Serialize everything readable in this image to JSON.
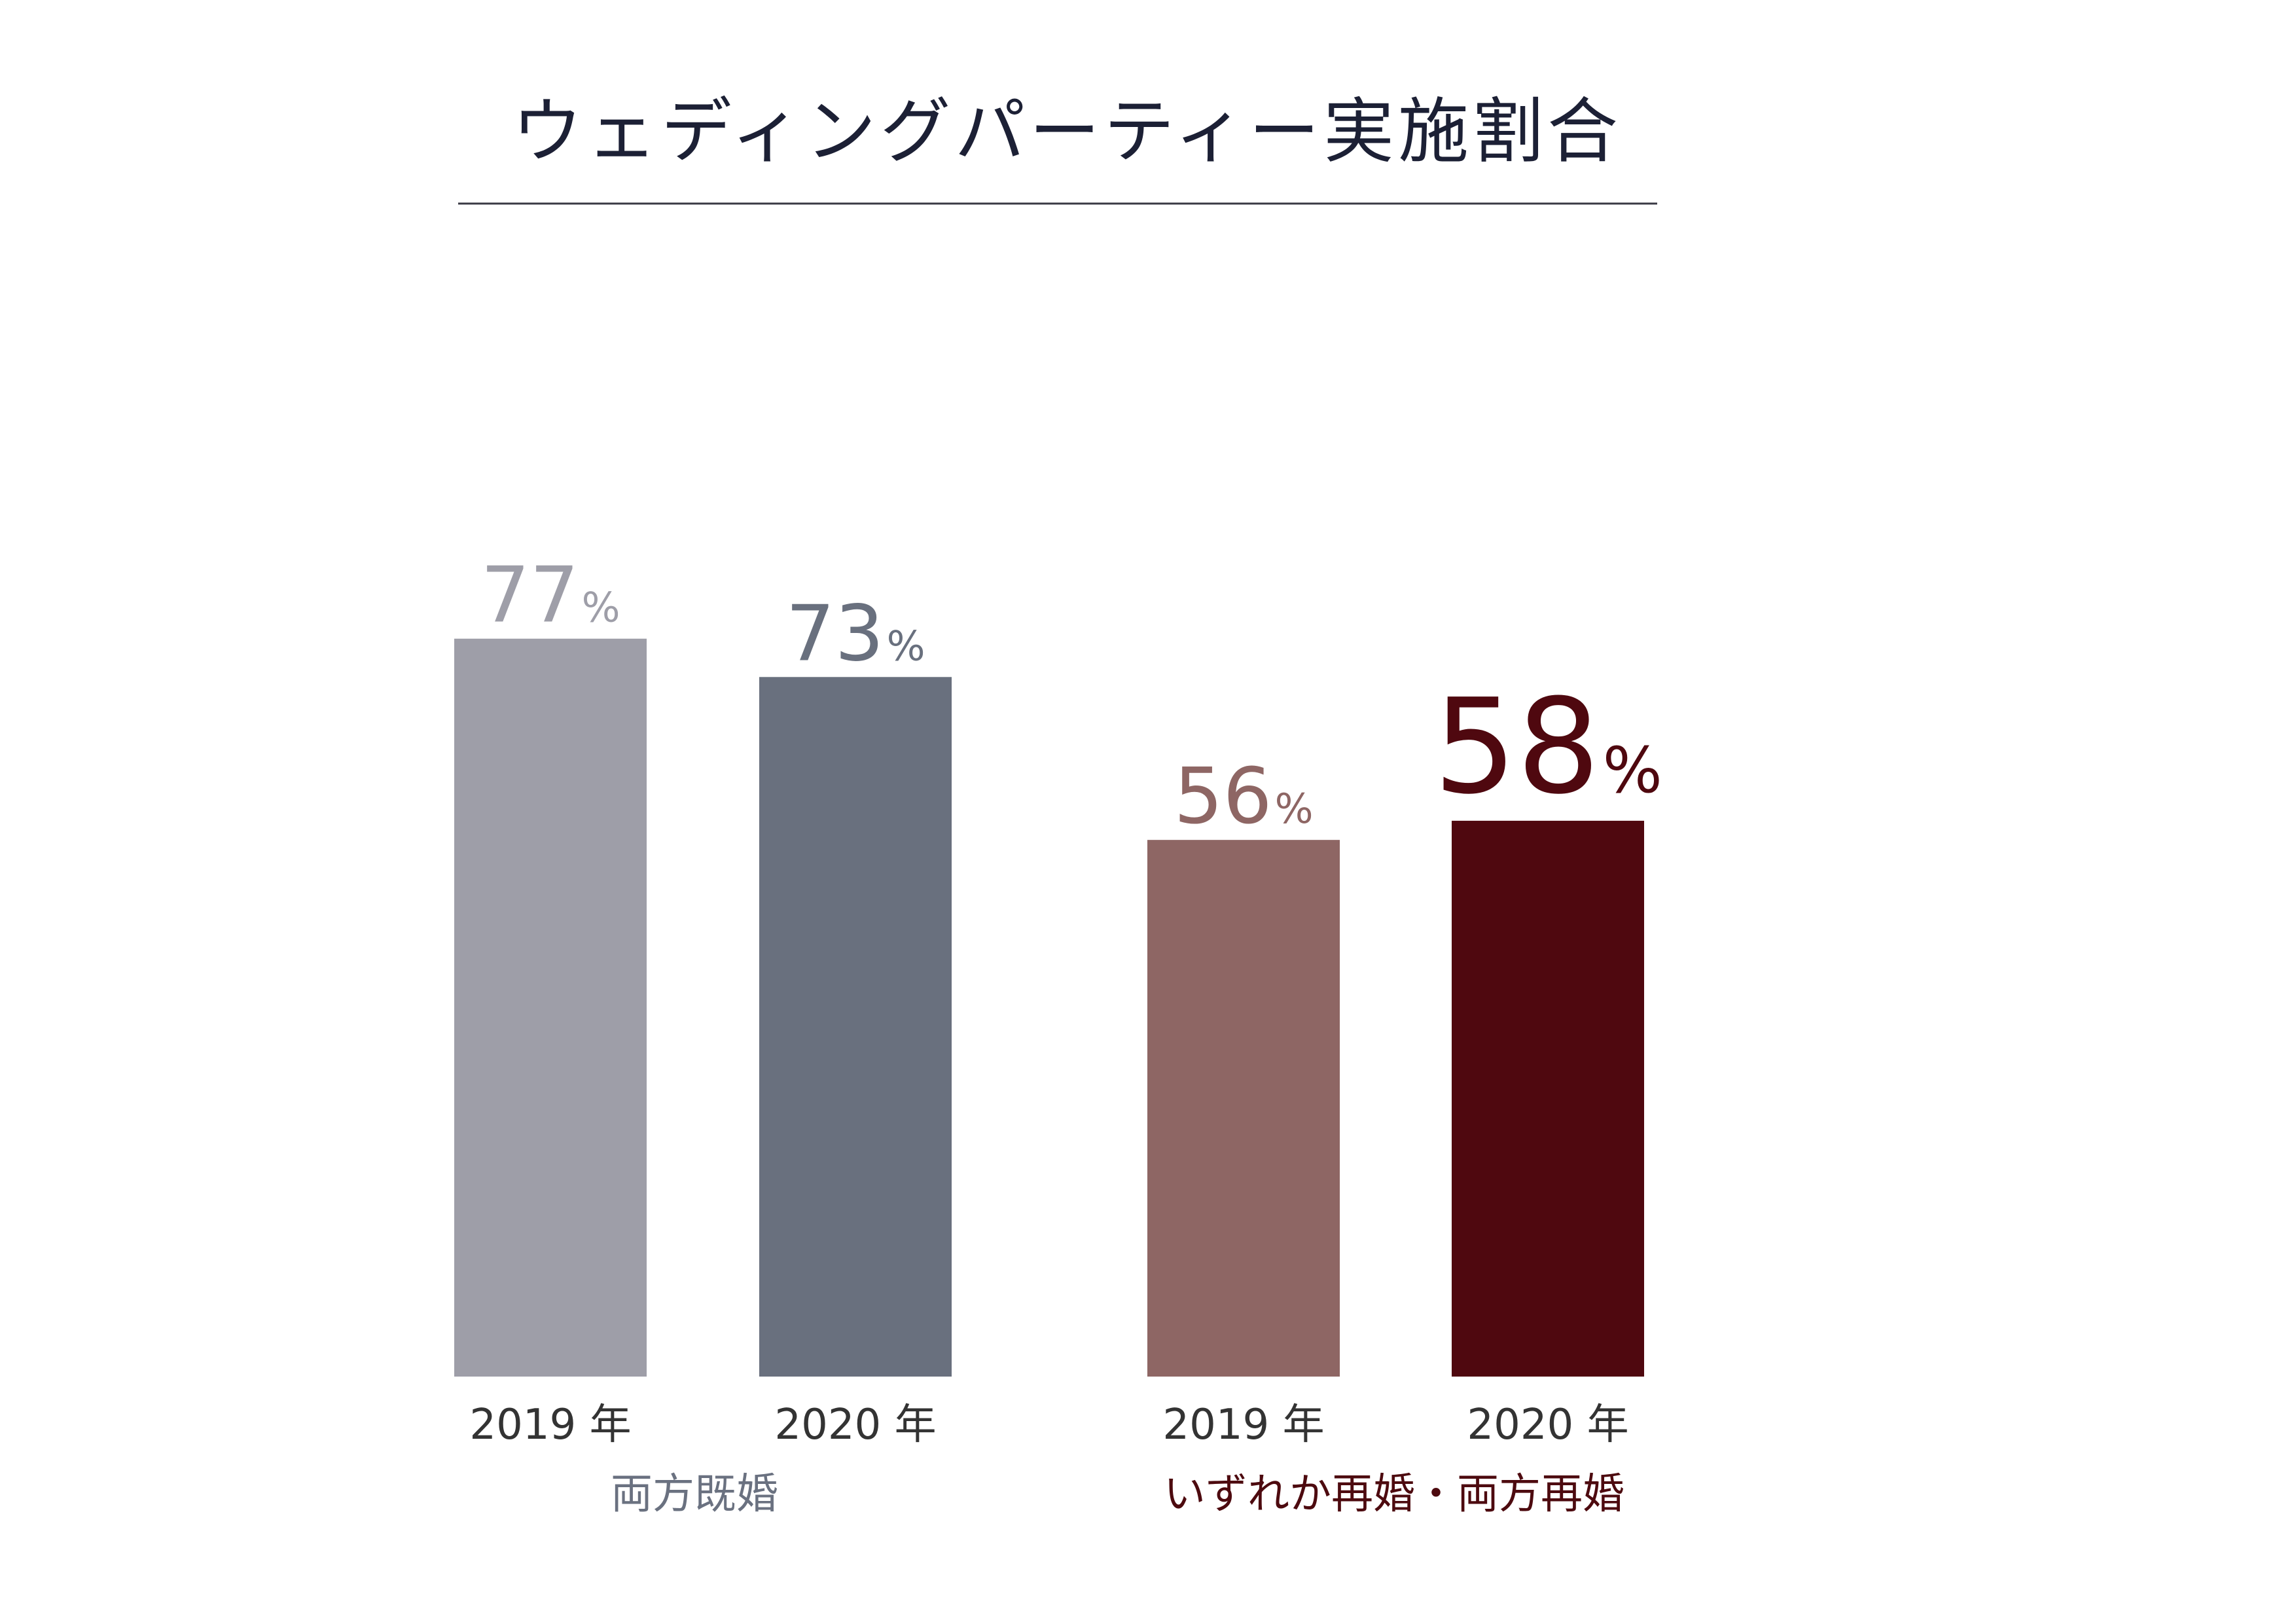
{
  "title": "ウェディングパーティー実施割合",
  "chart_data": {
    "type": "bar",
    "title": "ウェディングパーティー実施割合",
    "unit": "%",
    "ylim": [
      0,
      100
    ],
    "grid": false,
    "groups": [
      {
        "name": "両方既婚",
        "color": "#6a7180",
        "bars": [
          {
            "category": "2019 年",
            "value": 77,
            "color": "#9e9ea8",
            "label_size": "medium"
          },
          {
            "category": "2020 年",
            "value": 73,
            "color": "#69707e",
            "label_size": "medium"
          }
        ]
      },
      {
        "name": "いずれか再婚・両方再婚",
        "color": "#4d0a0f",
        "bars": [
          {
            "category": "2019 年",
            "value": 56,
            "color": "#8e6664",
            "label_size": "medium"
          },
          {
            "category": "2020 年",
            "value": 58,
            "color": "#4f080f",
            "label_size": "large"
          }
        ]
      }
    ]
  }
}
